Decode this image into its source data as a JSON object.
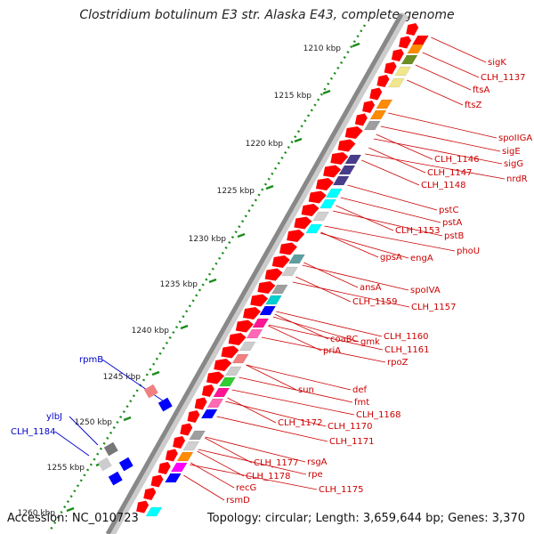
{
  "title": "Clostridium botulinum E3 str. Alaska E43, complete genome",
  "accession": "Accession: NC_010723",
  "summary": "Topology: circular; Length: 3,659,644 bp; Genes: 3,370",
  "colors": {
    "forward_gene": "#ff0000",
    "reverse_label": "#cc0000",
    "other_label": "#0000cc",
    "tick": "#1a8c1a",
    "backbone": "#888888"
  },
  "scale_labels": [
    "1210 kbp",
    "1215 kbp",
    "1220 kbp",
    "1225 kbp",
    "1230 kbp",
    "1235 kbp",
    "1240 kbp",
    "1245 kbp",
    "1250 kbp",
    "1255 kbp",
    "1260 kbp"
  ],
  "right_genes": [
    "sigK",
    "CLH_1137",
    "ftsA",
    "ftsZ",
    "spoIIGA",
    "sigE",
    "sigG",
    "nrdR",
    "CLH_1146",
    "CLH_1147",
    "CLH_1148",
    "pstC",
    "pstA",
    "pstB",
    "CLH_1153",
    "phoU",
    "gpsA",
    "engA",
    "ansA",
    "spoIVA",
    "CLH_1159",
    "CLH_1157",
    "CLH_1160",
    "coaBC",
    "gmk",
    "CLH_1161",
    "priA",
    "rpoZ",
    "def",
    "sun",
    "fmt",
    "CLH_1168",
    "CLH_1172",
    "CLH_1170",
    "CLH_1171",
    "rsgA",
    "CLH_1177",
    "CLH_1178",
    "rpe",
    "CLH_1175",
    "recG",
    "rsmD"
  ],
  "left_genes": [
    "rpmB",
    "ylbJ",
    "CLH_1184"
  ]
}
